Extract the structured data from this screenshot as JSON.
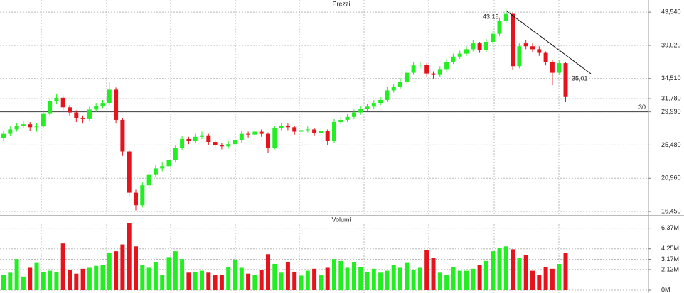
{
  "chart_data": [
    {
      "type": "candlestick",
      "title": "Prezzi",
      "up_color": "#22ee22",
      "down_color": "#e5141c",
      "open": [
        26.4,
        27.0,
        27.6,
        28.1,
        28.3,
        27.9,
        28.0,
        29.8,
        31.4,
        31.9,
        30.6,
        29.9,
        29.1,
        29.0,
        30.3,
        30.8,
        31.2,
        33.0,
        28.9,
        24.6,
        19.0,
        17.3,
        20.0,
        21.5,
        22.3,
        22.6,
        23.4,
        25.1,
        26.3,
        26.0,
        26.6,
        26.8,
        25.9,
        25.5,
        25.3,
        25.6,
        26.1,
        27.0,
        26.9,
        27.3,
        27.0,
        25.1,
        27.8,
        28.1,
        27.9,
        27.3,
        27.5,
        27.6,
        27.1,
        27.4,
        26.0,
        28.6,
        28.9,
        29.3,
        29.9,
        30.4,
        30.7,
        31.2,
        31.6,
        32.9,
        33.4,
        34.1,
        35.3,
        36.3,
        36.4,
        35.2,
        35.0,
        35.8,
        36.8,
        37.5,
        37.9,
        38.5,
        39.3,
        38.4,
        39.5,
        40.6,
        42.4,
        43.3,
        36.2,
        39.3,
        38.9,
        38.5,
        38.0,
        36.8,
        35.3,
        36.6
      ],
      "high": [
        27.4,
        28.0,
        28.5,
        28.7,
        28.6,
        28.4,
        30.2,
        31.8,
        32.4,
        32.1,
        30.9,
        30.2,
        29.5,
        30.7,
        31.2,
        31.6,
        34.0,
        33.3,
        29.1,
        24.8,
        19.4,
        20.4,
        22.0,
        22.8,
        23.1,
        23.8,
        25.5,
        26.7,
        26.6,
        27.0,
        27.3,
        27.0,
        26.2,
        25.8,
        26.0,
        26.5,
        27.4,
        27.3,
        27.7,
        27.6,
        27.2,
        28.1,
        28.5,
        28.4,
        28.1,
        27.9,
        28.0,
        27.8,
        27.8,
        27.6,
        29.0,
        29.3,
        29.7,
        30.3,
        30.8,
        31.1,
        31.6,
        32.0,
        33.4,
        33.8,
        34.6,
        35.7,
        36.7,
        36.8,
        36.6,
        35.5,
        36.2,
        37.2,
        37.9,
        38.3,
        38.9,
        39.7,
        39.5,
        39.9,
        41.0,
        42.8,
        44.0,
        43.5,
        39.3,
        39.7,
        39.3,
        38.9,
        38.2,
        37.0,
        37.0,
        36.8
      ],
      "low": [
        26.0,
        26.7,
        27.3,
        27.8,
        27.4,
        27.3,
        27.8,
        29.5,
        31.0,
        30.2,
        29.5,
        28.6,
        28.4,
        28.7,
        30.0,
        30.5,
        30.9,
        28.4,
        24.0,
        18.5,
        16.6,
        17.0,
        19.6,
        21.1,
        21.9,
        22.3,
        23.1,
        24.8,
        25.6,
        25.7,
        26.3,
        25.5,
        25.1,
        24.9,
        25.0,
        25.3,
        25.8,
        26.5,
        26.6,
        26.6,
        24.4,
        24.9,
        27.5,
        27.5,
        26.9,
        27.0,
        27.2,
        26.8,
        26.8,
        25.5,
        25.8,
        28.3,
        28.6,
        29.0,
        29.6,
        30.1,
        30.4,
        30.9,
        31.3,
        32.6,
        33.1,
        33.8,
        35.0,
        35.9,
        34.8,
        34.5,
        34.7,
        35.5,
        36.5,
        37.2,
        37.6,
        38.2,
        38.0,
        38.1,
        39.2,
        40.3,
        42.1,
        35.7,
        35.9,
        38.5,
        38.1,
        37.6,
        36.3,
        33.6,
        35.0,
        31.3
      ],
      "close": [
        27.0,
        27.6,
        28.1,
        28.3,
        27.9,
        28.0,
        29.8,
        31.4,
        31.9,
        30.6,
        29.9,
        29.1,
        29.0,
        30.3,
        30.8,
        31.2,
        33.0,
        28.9,
        24.6,
        19.0,
        17.3,
        20.0,
        21.5,
        22.3,
        22.6,
        23.4,
        25.1,
        26.3,
        26.0,
        26.6,
        26.8,
        25.9,
        25.5,
        25.3,
        25.6,
        26.1,
        27.0,
        26.9,
        27.3,
        27.0,
        25.1,
        27.8,
        28.1,
        27.9,
        27.3,
        27.5,
        27.6,
        27.1,
        27.4,
        26.0,
        28.6,
        28.9,
        29.3,
        29.9,
        30.4,
        30.7,
        31.2,
        31.6,
        32.9,
        33.4,
        34.1,
        35.3,
        36.3,
        36.4,
        35.2,
        35.0,
        35.8,
        36.8,
        37.5,
        37.9,
        38.5,
        39.3,
        38.4,
        39.5,
        40.6,
        42.4,
        43.3,
        36.2,
        38.9,
        38.9,
        38.5,
        38.0,
        36.8,
        35.3,
        36.6,
        32.0
      ],
      "ylim": [
        16,
        45
      ],
      "yticks": [
        {
          "value": 43.54,
          "label": "43,540"
        },
        {
          "value": 39.02,
          "label": "39,020"
        },
        {
          "value": 34.51,
          "label": "34,510"
        },
        {
          "value": 31.78,
          "label": "31,780"
        },
        {
          "value": 29.99,
          "label": "29,990"
        },
        {
          "value": 25.48,
          "label": "25,480"
        },
        {
          "value": 20.96,
          "label": "20,960"
        },
        {
          "value": 16.45,
          "label": "16,450"
        }
      ],
      "hline": 30,
      "annotations": [
        "43,18",
        "35,01"
      ],
      "grid": true
    },
    {
      "type": "bar",
      "title": "Volumi",
      "values": [
        1.6,
        1.8,
        3.2,
        1.4,
        2.3,
        2.8,
        1.9,
        2.0,
        1.9,
        4.8,
        2.1,
        1.7,
        2.2,
        2.3,
        2.5,
        2.6,
        3.8,
        4.0,
        4.7,
        6.9,
        4.5,
        2.6,
        2.3,
        2.9,
        1.6,
        3.4,
        4.0,
        3.2,
        1.8,
        1.9,
        2.0,
        1.8,
        1.6,
        1.6,
        2.4,
        3.1,
        2.3,
        1.7,
        1.6,
        2.1,
        3.7,
        2.7,
        1.8,
        2.9,
        1.9,
        1.5,
        2.0,
        2.2,
        1.6,
        2.3,
        3.2,
        3.0,
        2.3,
        2.9,
        2.4,
        1.9,
        2.2,
        1.8,
        2.0,
        2.6,
        2.3,
        2.8,
        2.1,
        2.3,
        4.1,
        3.3,
        1.8,
        1.6,
        2.4,
        2.0,
        2.0,
        2.2,
        2.6,
        3.0,
        4.0,
        4.3,
        4.5,
        4.2,
        3.3,
        3.6,
        2.0,
        1.6,
        2.4,
        2.2,
        2.7,
        3.8
      ],
      "ylim": [
        0,
        7
      ],
      "yticks": [
        {
          "value": 6.37,
          "label": "6,37M"
        },
        {
          "value": 4.25,
          "label": "4,25M"
        },
        {
          "value": 3.17,
          "label": "3,17M"
        },
        {
          "value": 2.12,
          "label": "2,12M"
        },
        {
          "value": 0,
          "label": "0M"
        }
      ],
      "grid": true
    }
  ]
}
